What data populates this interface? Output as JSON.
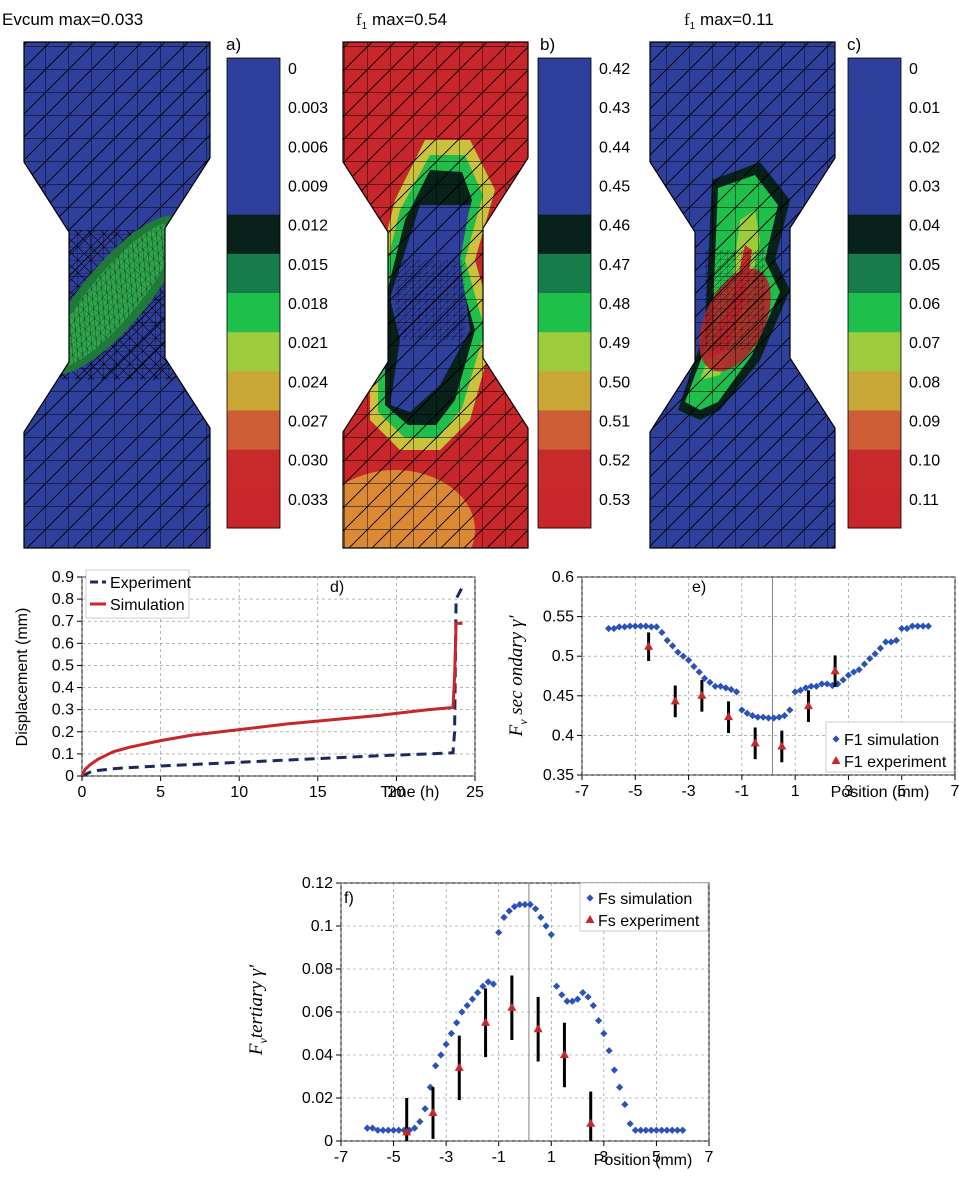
{
  "colors": {
    "fem_blue": "#2e3f9c",
    "fem_red": "#c8262a",
    "mesh_line": "#000000",
    "experiment_line": "#1c2a5a",
    "simulation_line": "#c8262a",
    "sim_marker": "#2a52b8",
    "exp_marker": "#c8262a",
    "error_bar": "#000000",
    "colorbar": [
      "#2e3f9c",
      "#2e3f9c",
      "#2e3f9c",
      "#2e3f9c",
      "#08211a",
      "#157c4a",
      "#1fbf4c",
      "#9ccb3c",
      "#c9a737",
      "#cc5d34",
      "#c82a2c",
      "#c8262a"
    ]
  },
  "panels": {
    "a": {
      "letter": "a)",
      "title": "Evcum max=0.033",
      "colorbar_labels": [
        "0",
        "0.003",
        "0.006",
        "0.009",
        "0.012",
        "0.015",
        "0.018",
        "0.021",
        "0.024",
        "0.027",
        "0.030",
        "0.033"
      ]
    },
    "b": {
      "letter": "b)",
      "title_symbol": "f",
      "title_sub": "1",
      "title_rest": " max=0.54",
      "colorbar_labels": [
        "0.42",
        "0.43",
        "0.44",
        "0.45",
        "0.46",
        "0.47",
        "0.48",
        "0.49",
        "0.50",
        "0.51",
        "0.52",
        "0.53"
      ]
    },
    "c": {
      "letter": "c)",
      "title_symbol": "f",
      "title_sub": "1",
      "title_rest": " max=0.11",
      "colorbar_labels": [
        "0",
        "0.01",
        "0.02",
        "0.03",
        "0.04",
        "0.05",
        "0.06",
        "0.07",
        "0.08",
        "0.09",
        "0.10",
        "0.11"
      ]
    }
  },
  "chart_data": [
    {
      "id": "d",
      "type": "line",
      "panel_label": "d)",
      "xlabel": "Time (h)",
      "ylabel": "Displacement (mm)",
      "xlim": [
        0,
        25
      ],
      "ylim": [
        0,
        0.9
      ],
      "xticks": [
        "0",
        "5",
        "10",
        "15",
        "20",
        "25"
      ],
      "yticks": [
        "0",
        "0.1",
        "0.2",
        "0.3",
        "0.4",
        "0.5",
        "0.6",
        "0.7",
        "0.8",
        "0.9"
      ],
      "grid": true,
      "legend_position": "top-left",
      "series": [
        {
          "name": "Experiment",
          "style": "dashed",
          "x": [
            0,
            0.3,
            0.6,
            1,
            2,
            3,
            5,
            7,
            10,
            13,
            16,
            19,
            22,
            23.6,
            23.7,
            23.8,
            24.2
          ],
          "y": [
            0,
            0.01,
            0.02,
            0.025,
            0.033,
            0.038,
            0.045,
            0.052,
            0.062,
            0.072,
            0.082,
            0.092,
            0.1,
            0.105,
            0.2,
            0.8,
            0.855
          ]
        },
        {
          "name": "Simulation",
          "style": "solid",
          "x": [
            0,
            0.2,
            0.5,
            1,
            2,
            3,
            5,
            7,
            10,
            13,
            16,
            19,
            22,
            23.6,
            23.7,
            23.8,
            24.2
          ],
          "y": [
            0,
            0.03,
            0.05,
            0.075,
            0.11,
            0.13,
            0.16,
            0.185,
            0.21,
            0.235,
            0.255,
            0.275,
            0.3,
            0.31,
            0.45,
            0.69,
            0.69
          ]
        }
      ]
    },
    {
      "id": "e",
      "type": "scatter",
      "panel_label": "e)",
      "xlabel": "Position (mm)",
      "ylabel_main": "F",
      "ylabel_sub": "v",
      "ylabel_rest": " sec ondary γ'",
      "xlim": [
        -7,
        7
      ],
      "ylim": [
        0.35,
        0.6
      ],
      "xticks": [
        "-7",
        "-5",
        "-3",
        "-1",
        "1",
        "3",
        "5",
        "7"
      ],
      "yticks": [
        "0.35",
        "0.4",
        "0.45",
        "0.5",
        "0.55",
        "0.6"
      ],
      "grid": true,
      "legend_position": "bottom-right",
      "series": [
        {
          "name": "F1 simulation",
          "marker": "diamond",
          "x": [
            -6.0,
            -5.8,
            -5.6,
            -5.4,
            -5.2,
            -5.0,
            -4.8,
            -4.6,
            -4.4,
            -4.2,
            -4.0,
            -3.8,
            -3.6,
            -3.4,
            -3.2,
            -3.0,
            -2.8,
            -2.6,
            -2.4,
            -2.2,
            -2.0,
            -1.8,
            -1.6,
            -1.4,
            -1.2,
            -1.0,
            -0.8,
            -0.6,
            -0.4,
            -0.2,
            0.0,
            0.2,
            0.4,
            0.6,
            0.8,
            1.0,
            1.2,
            1.4,
            1.6,
            1.8,
            2.0,
            2.2,
            2.4,
            2.6,
            2.8,
            3.0,
            3.2,
            3.4,
            3.6,
            3.8,
            4.0,
            4.2,
            4.4,
            4.6,
            4.8,
            5.0,
            5.2,
            5.4,
            5.6,
            5.8,
            6.0
          ],
          "y": [
            0.535,
            0.535,
            0.537,
            0.537,
            0.538,
            0.538,
            0.538,
            0.538,
            0.537,
            0.537,
            0.53,
            0.52,
            0.513,
            0.505,
            0.5,
            0.495,
            0.487,
            0.48,
            0.472,
            0.467,
            0.462,
            0.462,
            0.46,
            0.458,
            0.455,
            0.432,
            0.428,
            0.425,
            0.423,
            0.423,
            0.422,
            0.422,
            0.423,
            0.425,
            0.432,
            0.455,
            0.457,
            0.46,
            0.462,
            0.462,
            0.465,
            0.465,
            0.463,
            0.465,
            0.47,
            0.476,
            0.48,
            0.483,
            0.49,
            0.497,
            0.503,
            0.51,
            0.518,
            0.518,
            0.52,
            0.535,
            0.535,
            0.538,
            0.538,
            0.538,
            0.538
          ]
        },
        {
          "name": "F1 experiment",
          "marker": "triangle",
          "x": [
            -4.5,
            -3.5,
            -2.5,
            -1.5,
            -0.5,
            0.5,
            1.5,
            2.5
          ],
          "y": [
            0.512,
            0.443,
            0.45,
            0.423,
            0.39,
            0.386,
            0.437,
            0.481
          ],
          "err": [
            0.018,
            0.02,
            0.02,
            0.02,
            0.02,
            0.02,
            0.02,
            0.02
          ]
        }
      ]
    },
    {
      "id": "f",
      "type": "scatter",
      "panel_label": "f)",
      "xlabel": "Position (mm)",
      "ylabel_main": "F",
      "ylabel_sub": "v",
      "ylabel_rest": "tertiary γ'",
      "xlim": [
        -7,
        7
      ],
      "ylim": [
        0,
        0.12
      ],
      "xticks": [
        "-7",
        "-5",
        "-3",
        "-1",
        "1",
        "3",
        "5",
        "7"
      ],
      "yticks": [
        "0",
        "0.02",
        "0.04",
        "0.06",
        "0.08",
        "0.1",
        "0.12"
      ],
      "grid": true,
      "legend_position": "top-right",
      "series": [
        {
          "name": "Fs simulation",
          "marker": "diamond",
          "x": [
            -6.0,
            -5.8,
            -5.6,
            -5.4,
            -5.2,
            -5.0,
            -4.8,
            -4.6,
            -4.4,
            -4.2,
            -4.0,
            -3.8,
            -3.6,
            -3.4,
            -3.2,
            -3.0,
            -2.8,
            -2.6,
            -2.4,
            -2.2,
            -2.0,
            -1.8,
            -1.6,
            -1.4,
            -1.2,
            -1.0,
            -0.8,
            -0.6,
            -0.4,
            -0.2,
            0.0,
            0.2,
            0.4,
            0.6,
            0.8,
            1.0,
            1.2,
            1.4,
            1.6,
            1.8,
            2.0,
            2.2,
            2.4,
            2.6,
            2.8,
            3.0,
            3.2,
            3.4,
            3.6,
            3.8,
            4.0,
            4.2,
            4.4,
            4.6,
            4.8,
            5.0,
            5.2,
            5.4,
            5.6,
            5.8,
            6.0
          ],
          "y": [
            0.006,
            0.006,
            0.005,
            0.005,
            0.005,
            0.005,
            0.005,
            0.005,
            0.005,
            0.006,
            0.009,
            0.015,
            0.025,
            0.035,
            0.04,
            0.045,
            0.05,
            0.055,
            0.06,
            0.063,
            0.066,
            0.069,
            0.072,
            0.074,
            0.073,
            0.097,
            0.104,
            0.107,
            0.109,
            0.11,
            0.11,
            0.11,
            0.108,
            0.104,
            0.1,
            0.096,
            0.072,
            0.068,
            0.065,
            0.065,
            0.066,
            0.069,
            0.067,
            0.063,
            0.056,
            0.05,
            0.042,
            0.033,
            0.025,
            0.017,
            0.008,
            0.005,
            0.005,
            0.005,
            0.005,
            0.005,
            0.005,
            0.005,
            0.005,
            0.005,
            0.005
          ]
        },
        {
          "name": "Fs experiment",
          "marker": "triangle",
          "x": [
            -4.5,
            -3.5,
            -2.5,
            -1.5,
            -0.5,
            0.5,
            1.5,
            2.5
          ],
          "y": [
            0.004,
            0.013,
            0.034,
            0.055,
            0.062,
            0.052,
            0.04,
            0.008
          ],
          "err": [
            0.016,
            0.012,
            0.015,
            0.016,
            0.015,
            0.015,
            0.015,
            0.015
          ]
        }
      ]
    }
  ]
}
